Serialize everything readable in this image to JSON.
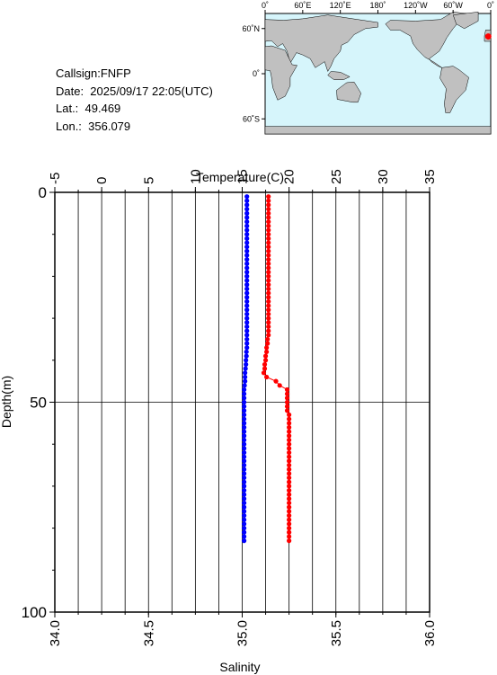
{
  "header": {
    "callsign": "Callsign:FNFP",
    "date": "Date:  2025/09/17 22:05(UTC)",
    "lat": "Lat.:  49.469",
    "lon": "Lon.:  356.079"
  },
  "map": {
    "top_ticks": [
      "0˚",
      "60˚E",
      "120˚E",
      "180˚",
      "120˚W",
      "60˚W",
      "0˚"
    ],
    "left_ticks": [
      "60˚N",
      "0˚",
      "60˚S"
    ],
    "station": {
      "lat": 49.469,
      "lon": 356.079
    },
    "ocean_color": "#d6f5fb",
    "land_color": "#c0c0c0",
    "marker_color": "#ff0000"
  },
  "chart_data": {
    "type": "scatter",
    "xlabel_top": "Temperature(C)",
    "xlabel_bottom": "Salinity",
    "ylabel": "Depth(m)",
    "temperature_range": [
      -5,
      35
    ],
    "salinity_range": [
      34.0,
      36.0
    ],
    "depth_range": [
      0,
      100
    ],
    "temperature_ticks": [
      "-5",
      "0",
      "5",
      "10",
      "15",
      "20",
      "25",
      "30",
      "35"
    ],
    "salinity_ticks": [
      "34.0",
      "34.5",
      "35.0",
      "35.5",
      "36.0"
    ],
    "depth_ticks": [
      "0",
      "50",
      "100"
    ],
    "series": [
      {
        "color": "#0000ff",
        "variable": "temperature",
        "depth": [
          1,
          2,
          3,
          4,
          5,
          6,
          7,
          8,
          9,
          10,
          11,
          12,
          13,
          14,
          15,
          16,
          17,
          18,
          19,
          20,
          21,
          22,
          23,
          24,
          25,
          26,
          27,
          28,
          29,
          30,
          31,
          32,
          33,
          34,
          35,
          36,
          37,
          38,
          39,
          40,
          41,
          42,
          43,
          44,
          45,
          46,
          47,
          48,
          49,
          50,
          51,
          52,
          53,
          54,
          55,
          56,
          57,
          58,
          59,
          60,
          61,
          62,
          63,
          64,
          65,
          66,
          67,
          68,
          69,
          70,
          71,
          72,
          73,
          74,
          75,
          76,
          77,
          78,
          79,
          80,
          81,
          82,
          83
        ],
        "values": [
          15.5,
          15.5,
          15.5,
          15.5,
          15.5,
          15.5,
          15.5,
          15.5,
          15.5,
          15.5,
          15.5,
          15.5,
          15.5,
          15.5,
          15.5,
          15.5,
          15.5,
          15.5,
          15.5,
          15.5,
          15.5,
          15.5,
          15.5,
          15.5,
          15.5,
          15.5,
          15.5,
          15.5,
          15.5,
          15.5,
          15.5,
          15.5,
          15.5,
          15.5,
          15.5,
          15.5,
          15.5,
          15.45,
          15.45,
          15.4,
          15.4,
          15.35,
          15.3,
          15.3,
          15.3,
          15.25,
          15.2,
          15.2,
          15.2,
          15.2,
          15.2,
          15.2,
          15.2,
          15.2,
          15.2,
          15.2,
          15.2,
          15.2,
          15.2,
          15.2,
          15.2,
          15.2,
          15.2,
          15.2,
          15.2,
          15.2,
          15.2,
          15.2,
          15.2,
          15.2,
          15.2,
          15.2,
          15.2,
          15.2,
          15.2,
          15.2,
          15.2,
          15.2,
          15.2,
          15.2,
          15.2,
          15.2,
          15.2
        ]
      },
      {
        "color": "#ff0000",
        "variable": "salinity",
        "depth": [
          1,
          2,
          3,
          4,
          5,
          6,
          7,
          8,
          9,
          10,
          11,
          12,
          13,
          14,
          15,
          16,
          17,
          18,
          19,
          20,
          21,
          22,
          23,
          24,
          25,
          26,
          27,
          28,
          29,
          30,
          31,
          32,
          33,
          34,
          35,
          36,
          37,
          38,
          39,
          40,
          41,
          42,
          43,
          44,
          45,
          46,
          47,
          48,
          49,
          50,
          51,
          52,
          53,
          54,
          55,
          56,
          57,
          58,
          59,
          60,
          61,
          62,
          63,
          64,
          65,
          66,
          67,
          68,
          69,
          70,
          71,
          72,
          73,
          74,
          75,
          76,
          77,
          78,
          79,
          80,
          81,
          82,
          83
        ],
        "values": [
          35.14,
          35.14,
          35.14,
          35.14,
          35.14,
          35.14,
          35.14,
          35.14,
          35.14,
          35.14,
          35.14,
          35.14,
          35.14,
          35.14,
          35.14,
          35.14,
          35.14,
          35.14,
          35.14,
          35.14,
          35.14,
          35.14,
          35.14,
          35.14,
          35.14,
          35.14,
          35.14,
          35.14,
          35.14,
          35.14,
          35.14,
          35.14,
          35.14,
          35.14,
          35.135,
          35.135,
          35.13,
          35.13,
          35.125,
          35.125,
          35.12,
          35.12,
          35.115,
          35.13,
          35.18,
          35.2,
          35.24,
          35.24,
          35.24,
          35.24,
          35.24,
          35.24,
          35.25,
          35.25,
          35.25,
          35.25,
          35.25,
          35.25,
          35.25,
          35.25,
          35.25,
          35.25,
          35.25,
          35.25,
          35.25,
          35.25,
          35.25,
          35.25,
          35.25,
          35.25,
          35.25,
          35.25,
          35.25,
          35.25,
          35.25,
          35.25,
          35.25,
          35.25,
          35.25,
          35.25,
          35.25,
          35.25,
          35.25
        ]
      }
    ],
    "grid": true
  }
}
